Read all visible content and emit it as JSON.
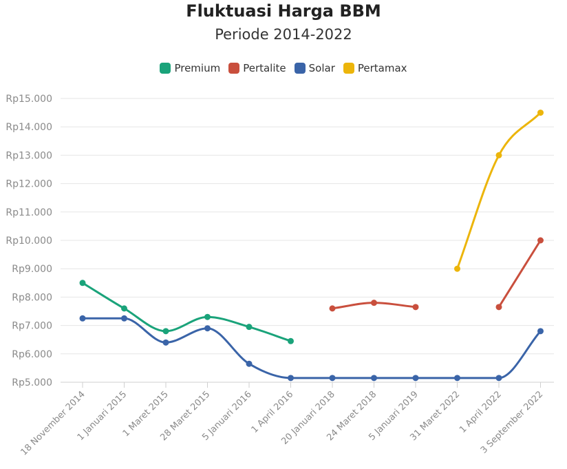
{
  "chart_data": {
    "type": "line",
    "title": "Fluktuasi Harga BBM",
    "subtitle": "Periode 2014-2022",
    "categories": [
      "18 November 2014",
      "1 Januari 2015",
      "1 Maret 2015",
      "28 Maret 2015",
      "5 Januari 2016",
      "1 April 2016",
      "20 Januari 2018",
      "24 Maret 2018",
      "5 Januari 2019",
      "31 Maret 2022",
      "1 April 2022",
      "3 September 2022"
    ],
    "yticks": [
      "Rp5.000",
      "Rp6.000",
      "Rp7.000",
      "Rp8.000",
      "Rp9.000",
      "Rp10.000",
      "Rp11.000",
      "Rp12.000",
      "Rp13.000",
      "Rp14.000",
      "Rp15.000"
    ],
    "ylim": [
      5000,
      15000
    ],
    "grid": true,
    "legend_position": "top",
    "series": [
      {
        "name": "Premium",
        "color": "#1aa37a",
        "values": [
          8500,
          7600,
          6800,
          7300,
          6950,
          6450,
          null,
          null,
          null,
          null,
          null,
          null
        ]
      },
      {
        "name": "Pertalite",
        "color": "#c94f3d",
        "values": [
          null,
          null,
          null,
          null,
          null,
          null,
          7600,
          7800,
          7650,
          null,
          7650,
          10000
        ]
      },
      {
        "name": "Solar",
        "color": "#3a64a8",
        "values": [
          7250,
          7250,
          6400,
          6900,
          5650,
          5150,
          5150,
          5150,
          5150,
          5150,
          5150,
          6800
        ]
      },
      {
        "name": "Pertamax",
        "color": "#ecb50b",
        "values": [
          null,
          null,
          null,
          null,
          null,
          null,
          null,
          null,
          null,
          9000,
          13000,
          14500
        ]
      }
    ]
  }
}
